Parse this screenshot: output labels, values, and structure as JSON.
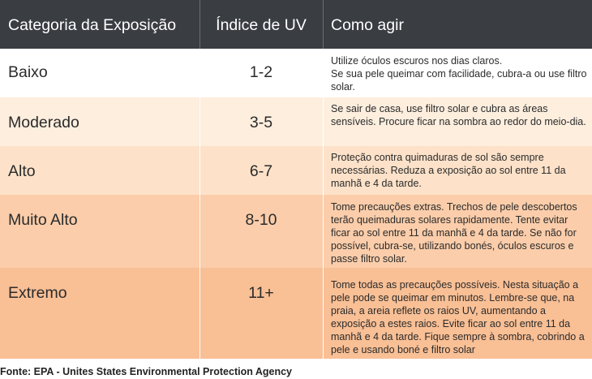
{
  "header": {
    "col_category": "Categoria da Exposição",
    "col_uv": "Índice de UV",
    "col_action": "Como agir"
  },
  "rows": [
    {
      "category": "Baixo",
      "uv": "1-2",
      "action": "Utilize óculos escuros nos dias claros.\nSe sua pele queimar com facilidade, cubra-a ou use filtro solar.",
      "color": "#ffffff"
    },
    {
      "category": "Moderado",
      "uv": "3-5",
      "action": "Se sair de casa, use filtro solar e cubra as áreas sensíveis. Procure ficar na sombra ao redor do meio-dia.",
      "color": "#fdeede"
    },
    {
      "category": "Alto",
      "uv": "6-7",
      "action": "Proteção contra quimaduras de sol são sempre necessárias. Reduza a exposição ao sol entre 11 da manhã e 4 da tarde.",
      "color": "#fde2c9"
    },
    {
      "category": "Muito Alto",
      "uv": "8-10",
      "action": "Tome precauções extras. Trechos de pele descobertos terão queimaduras solares rapidamente. Tente evitar ficar ao sol entre 11 da manhã e 4 da tarde. Se não for possível, cubra-se, utilizando bonés, óculos escuros e passe filtro solar.",
      "color": "#fbcdaa"
    },
    {
      "category": "Extremo",
      "uv": "11+",
      "action": "Tome todas as precauções possíveis. Nesta situação a pele pode se queimar em minutos. Lembre-se que, na praia, a areia reflete os raios UV, aumentando a exposição a estes raios. Evite ficar ao sol entre 11 da manhã e 4 da tarde. Fique sempre à sombra, cobrindo a pele e usando boné e filtro solar",
      "color": "#f9bf95"
    }
  ],
  "colors": {
    "header_bg": "#3a3d42",
    "header_text": "#ffffff"
  },
  "footer": {
    "source": "Fonte: EPA - Unites States Environmental Protection Agency"
  }
}
